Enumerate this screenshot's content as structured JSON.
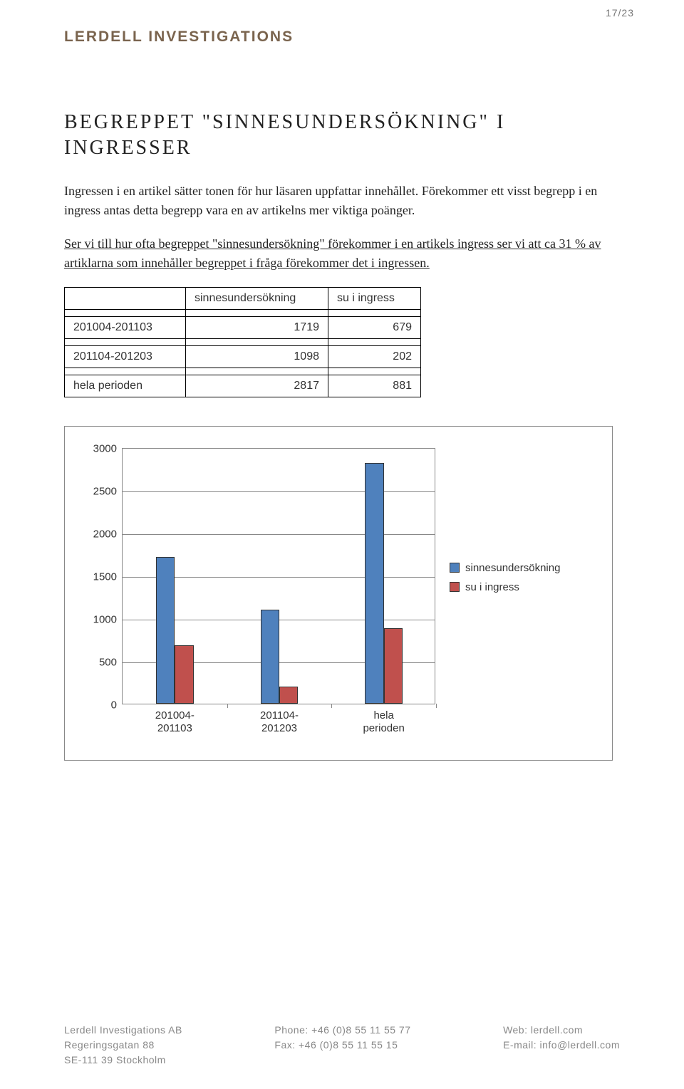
{
  "page_number": "17/23",
  "brand": "LERDELL INVESTIGATIONS",
  "title": "BEGREPPET \"SINNESUNDERSÖKNING\" I INGRESSER",
  "paragraphs": {
    "p1": "Ingressen i en artikel sätter tonen för hur läsaren uppfattar innehållet. Förekommer ett visst begrepp i en ingress antas detta begrepp vara en av artikelns mer viktiga poänger.",
    "p2": "Ser vi till hur ofta begreppet \"sinnesundersökning\" förekommer i en artikels ingress ser vi att ca 31 % av artiklarna som innehåller begreppet i fråga förekommer det i ingressen."
  },
  "table": {
    "columns": [
      "",
      "sinnesundersökning",
      "su i ingress"
    ],
    "rows": [
      {
        "label": "201004-201103",
        "c1": "1719",
        "c2": "679"
      },
      {
        "label": "201104-201203",
        "c1": "1098",
        "c2": "202"
      },
      {
        "label": "hela perioden",
        "c1": "2817",
        "c2": "881"
      }
    ]
  },
  "chart": {
    "type": "bar",
    "ylim": [
      0,
      3000
    ],
    "ytick_step": 500,
    "yticks": [
      "0",
      "500",
      "1000",
      "1500",
      "2000",
      "2500",
      "3000"
    ],
    "categories": [
      "201004-\n201103",
      "201104-\n201203",
      "hela\nperioden"
    ],
    "series": [
      {
        "name": "sinnesundersökning",
        "color": "#4f81bd",
        "values": [
          1719,
          1098,
          2817
        ]
      },
      {
        "name": "su i ingress",
        "color": "#c0504d",
        "values": [
          679,
          202,
          881
        ]
      }
    ],
    "background_color": "#ffffff",
    "grid_color": "#888888",
    "bar_group_width": 0.36,
    "bar_width": 0.18,
    "label_fontsize": 15
  },
  "footer": {
    "left": {
      "l1": "Lerdell Investigations AB",
      "l2": "Regeringsgatan 88",
      "l3": "SE-111 39 Stockholm"
    },
    "mid": {
      "l1": "Phone: +46 (0)8 55 11 55 77",
      "l2": "Fax: +46 (0)8 55 11 55 15"
    },
    "right": {
      "l1": "Web: lerdell.com",
      "l2": "E-mail: info@lerdell.com"
    }
  }
}
